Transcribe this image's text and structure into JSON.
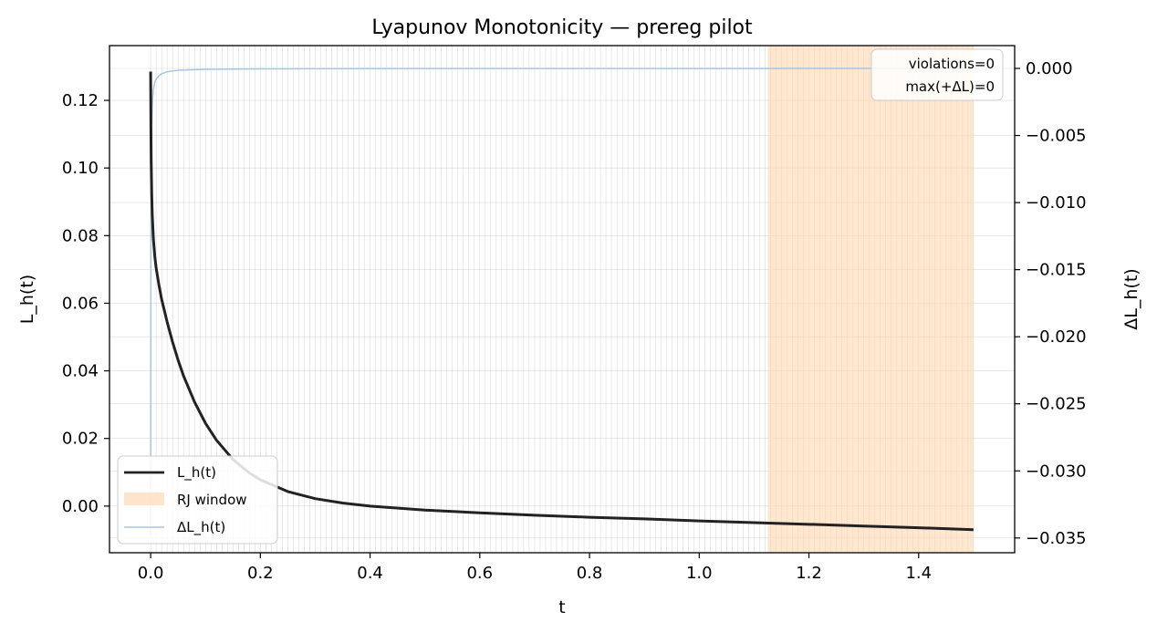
{
  "chart_data": {
    "type": "line",
    "title": "Lyapunov Monotonicity — prereg pilot",
    "xlabel": "t",
    "ylabel": "L_h(t)",
    "ylabel_right": "ΔL_h(t)",
    "xlim": [
      -0.075,
      1.575
    ],
    "ylim_left": [
      -0.0138,
      0.1362
    ],
    "ylim_right": [
      -0.0361,
      0.0017
    ],
    "x_ticks": [
      "0.0",
      "0.2",
      "0.4",
      "0.6",
      "0.8",
      "1.0",
      "1.2",
      "1.4"
    ],
    "y_ticks_left": [
      "0.00",
      "0.02",
      "0.04",
      "0.06",
      "0.08",
      "0.10",
      "0.12"
    ],
    "y_ticks_right": [
      "0.000",
      "−0.005",
      "−0.010",
      "−0.015",
      "−0.020",
      "−0.025",
      "−0.030",
      "−0.035"
    ],
    "grid": true,
    "legend_position": "lower-left",
    "rj_window": {
      "label": "RJ window",
      "x_start": 1.125,
      "x_end": 1.5,
      "color": "#fdd9b5"
    },
    "annotation": {
      "lines": [
        "violations=0",
        "max(+ΔL)=0"
      ],
      "position": "top-right"
    },
    "series": [
      {
        "name": "L_h(t)",
        "axis": "left",
        "color": "#222222",
        "x": [
          0.0,
          0.0005,
          0.001,
          0.002,
          0.003,
          0.005,
          0.0075,
          0.01,
          0.015,
          0.02,
          0.03,
          0.04,
          0.05,
          0.06,
          0.08,
          0.1,
          0.12,
          0.15,
          0.18,
          0.2,
          0.25,
          0.3,
          0.35,
          0.4,
          0.5,
          0.6,
          0.7,
          0.8,
          0.9,
          1.0,
          1.1,
          1.2,
          1.3,
          1.4,
          1.5
        ],
        "y": [
          0.1285,
          0.112,
          0.102,
          0.092,
          0.086,
          0.079,
          0.074,
          0.0705,
          0.0655,
          0.0612,
          0.0545,
          0.0485,
          0.0432,
          0.0385,
          0.0308,
          0.0245,
          0.0195,
          0.0138,
          0.0098,
          0.0078,
          0.0043,
          0.0022,
          0.0009,
          0.0,
          -0.0012,
          -0.002,
          -0.0027,
          -0.0033,
          -0.0038,
          -0.0044,
          -0.0049,
          -0.0054,
          -0.0059,
          -0.0064,
          -0.007
        ]
      },
      {
        "name": "ΔL_h(t)",
        "axis": "right",
        "color": "#a6c6e0",
        "x": [
          0.0,
          0.0005,
          0.001,
          0.002,
          0.003,
          0.004,
          0.005,
          0.007,
          0.01,
          0.015,
          0.02,
          0.03,
          0.05,
          0.1,
          0.2,
          0.5,
          1.0,
          1.5
        ],
        "y": [
          -0.0348,
          -0.012,
          -0.0075,
          -0.0042,
          -0.0028,
          -0.0021,
          -0.0016,
          -0.0011,
          -0.0008,
          -0.00055,
          -0.0004,
          -0.00025,
          -0.00014,
          -7e-05,
          -3e-05,
          -1e-05,
          -5e-06,
          -2e-06
        ]
      }
    ]
  }
}
